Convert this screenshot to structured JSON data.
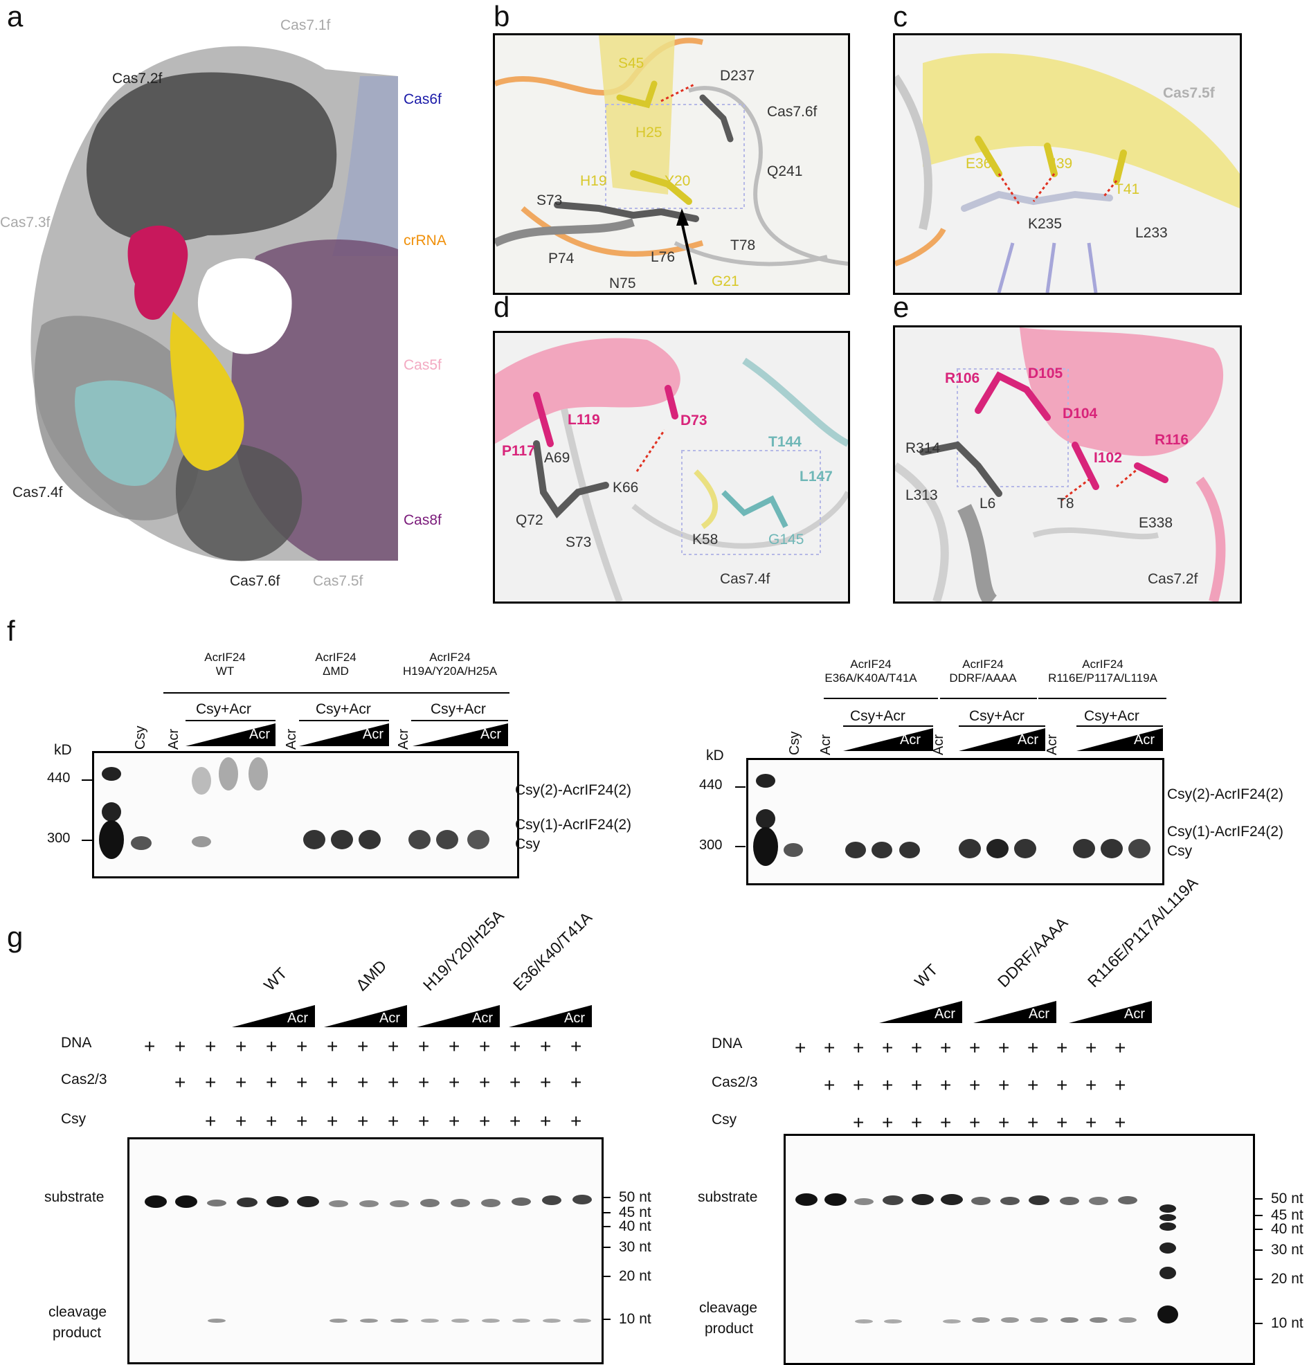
{
  "panel_letters": {
    "a": "a",
    "b": "b",
    "c": "c",
    "d": "d",
    "e": "e",
    "f": "f",
    "g": "g"
  },
  "panel_a": {
    "labels": [
      "Cas7.1f",
      "Cas7.2f",
      "Cas6f",
      "Cas7.3f",
      "crRNA",
      "Cas5f",
      "Cas7.4f",
      "Cas8f",
      "Cas7.6f",
      "Cas7.5f"
    ],
    "colors": {
      "cas6f": "#1a1aa8",
      "crrna": "#f0900a",
      "cas5f": "#f3aac2",
      "cas8f": "#7a1a7a",
      "grey_light": "#9a9a9a",
      "grey_dark": "#333333"
    }
  },
  "panel_b": {
    "residues_acr": [
      "S45",
      "H25",
      "H19",
      "Y20",
      "G21"
    ],
    "residues_cas": [
      "D237",
      "Cas7.6f",
      "Q241",
      "S73",
      "P74",
      "L76",
      "T78",
      "N75"
    ]
  },
  "panel_c": {
    "residues_acr": [
      "E36",
      "I39",
      "T41"
    ],
    "residues_cas": [
      "Cas7.5f",
      "K235",
      "L233"
    ]
  },
  "panel_d": {
    "residues_acr": [
      "L119",
      "D73",
      "P117",
      "T144",
      "L147",
      "G145"
    ],
    "residues_cas": [
      "A69",
      "K66",
      "Q72",
      "S73",
      "K58",
      "Cas7.4f"
    ]
  },
  "panel_e": {
    "residues_acr": [
      "R106",
      "D105",
      "D104",
      "I102",
      "R116"
    ],
    "residues_cas": [
      "R314",
      "L313",
      "L6",
      "T8",
      "E338",
      "Cas7.2f"
    ]
  },
  "panel_f": {
    "left": {
      "groups": [
        {
          "line1": "AcrIF24",
          "line2": "WT"
        },
        {
          "line1": "AcrIF24",
          "line2": "ΔMD"
        },
        {
          "line1": "AcrIF24",
          "line2": "H19A/Y20A/H25A"
        }
      ],
      "sub": "Csy+Acr",
      "lanes": [
        "Csy",
        "Acr",
        "Acr",
        "Acr"
      ],
      "wedge": "Acr",
      "kd": "kD",
      "markers": [
        "440",
        "300"
      ],
      "bands": [
        "Csy(2)-AcrIF24(2)",
        "Csy(1)-AcrIF24(2)",
        "Csy"
      ]
    },
    "right": {
      "groups": [
        {
          "line1": "AcrIF24",
          "line2": "E36A/K40A/T41A"
        },
        {
          "line1": "AcrIF24",
          "line2": "DDRF/AAAA"
        },
        {
          "line1": "AcrIF24",
          "line2": "R116E/P117A/L119A"
        }
      ],
      "sub": "Csy+Acr",
      "lanes": [
        "Csy",
        "Acr",
        "Acr",
        "Acr"
      ],
      "wedge": "Acr",
      "kd": "kD",
      "markers": [
        "440",
        "300"
      ],
      "bands": [
        "Csy(2)-AcrIF24(2)",
        "Csy(1)-AcrIF24(2)",
        "Csy"
      ]
    }
  },
  "panel_g": {
    "left": {
      "groups": [
        "WT",
        "ΔMD",
        "H19/Y20/H25A",
        "E36/K40/T41A"
      ],
      "wedge": "Acr",
      "rows": [
        "DNA",
        "Cas2/3",
        "Csy"
      ],
      "plus": "+",
      "substrate": "substrate",
      "cleavage": "cleavage",
      "product": "product",
      "markers": [
        "50 nt",
        "45 nt",
        "40 nt",
        "30 nt",
        "20 nt",
        "10 nt"
      ]
    },
    "right": {
      "groups": [
        "WT",
        "DDRF/AAAA",
        "R116E/P117A/L119A"
      ],
      "wedge": "Acr",
      "rows": [
        "DNA",
        "Cas2/3",
        "Csy"
      ],
      "plus": "+",
      "substrate": "substrate",
      "cleavage": "cleavage",
      "product": "product",
      "markers": [
        "50 nt",
        "45 nt",
        "40 nt",
        "30 nt",
        "20 nt",
        "10 nt"
      ]
    }
  }
}
